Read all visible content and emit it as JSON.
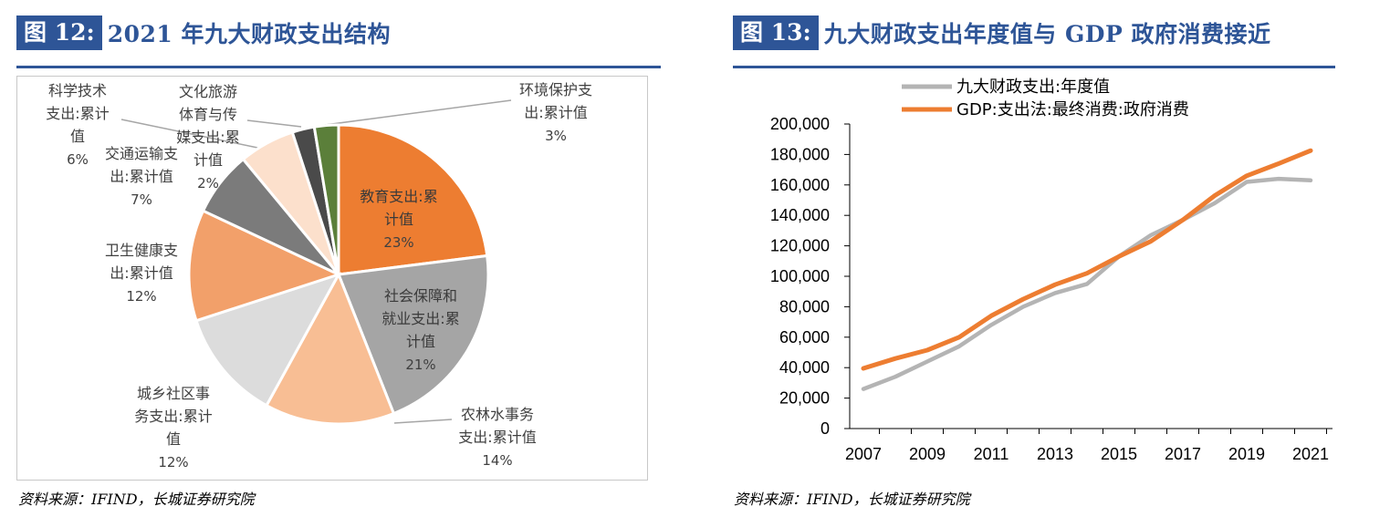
{
  "left_panel": {
    "fig_label": "图 12:",
    "fig_title": "2021 年九大财政支出结构",
    "source": "资料来源：IFIND，长城证券研究院"
  },
  "right_panel": {
    "fig_label": "图 13:",
    "fig_title": "九大财政支出年度值与 GDP 政府消费接近",
    "source": "资料来源：IFIND，长城证券研究院"
  },
  "chart_data": [
    {
      "type": "pie",
      "title": "2021 年九大财政支出结构",
      "slices": [
        {
          "lines": [
            "教育支出:累",
            "计值"
          ],
          "pct_label": "23%",
          "value": 23,
          "color": "#ed7d31"
        },
        {
          "lines": [
            "社会保障和",
            "就业支出:累",
            "计值"
          ],
          "pct_label": "21%",
          "value": 21,
          "color": "#a5a5a5"
        },
        {
          "lines": [
            "农林水事务",
            "支出:累计值"
          ],
          "pct_label": "14%",
          "value": 14,
          "color": "#f8be94"
        },
        {
          "lines": [
            "城乡社区事",
            "务支出:累计",
            "值"
          ],
          "pct_label": "12%",
          "value": 12,
          "color": "#dcdcdc"
        },
        {
          "lines": [
            "卫生健康支",
            "出:累计值"
          ],
          "pct_label": "12%",
          "value": 12,
          "color": "#f2a06a"
        },
        {
          "lines": [
            "交通运输支",
            "出:累计值"
          ],
          "pct_label": "7%",
          "value": 7,
          "color": "#7b7b7b"
        },
        {
          "lines": [
            "科学技术",
            "支出:累计",
            "值"
          ],
          "pct_label": "6%",
          "value": 6,
          "color": "#fce0cc"
        },
        {
          "lines": [
            "文化旅游",
            "体育与传",
            "媒支出:累",
            "计值"
          ],
          "pct_label": "2%",
          "value": 2.4,
          "color": "#4a4a4a"
        },
        {
          "lines": [
            "环境保护支",
            "出:累计值"
          ],
          "pct_label": "3%",
          "value": 2.6,
          "color": "#5b7f3a"
        }
      ]
    },
    {
      "type": "line",
      "title": "九大财政支出年度值与 GDP 政府消费接近",
      "x_tick_labels": [
        "2007",
        "2009",
        "2011",
        "2013",
        "2015",
        "2017",
        "2019",
        "2021"
      ],
      "y_tick_labels": [
        "0",
        "20,000",
        "40,000",
        "60,000",
        "80,000",
        "100,000",
        "120,000",
        "140,000",
        "160,000",
        "180,000",
        "200,000"
      ],
      "ylim": [
        0,
        200000
      ],
      "xlim": [
        2007,
        2021
      ],
      "series": [
        {
          "name": "九大财政支出:年度值",
          "color": "#b4b4b4",
          "x": [
            2007,
            2008,
            2009,
            2010,
            2011,
            2012,
            2013,
            2014,
            2015,
            2016,
            2017,
            2018,
            2019,
            2020,
            2021
          ],
          "values": [
            26000,
            34000,
            44000,
            54000,
            68000,
            80000,
            89000,
            95000,
            113000,
            127000,
            137000,
            148000,
            162000,
            164000,
            163000
          ]
        },
        {
          "name": "GDP:支出法:最终消费:政府消费",
          "color": "#ed7d31",
          "x": [
            2007,
            2008,
            2009,
            2010,
            2011,
            2012,
            2013,
            2014,
            2015,
            2016,
            2017,
            2018,
            2019,
            2020,
            2021
          ],
          "values": [
            39500,
            46000,
            51500,
            60000,
            74000,
            85000,
            94500,
            102000,
            113000,
            123000,
            137000,
            153000,
            166000,
            174000,
            182500
          ]
        }
      ]
    }
  ]
}
